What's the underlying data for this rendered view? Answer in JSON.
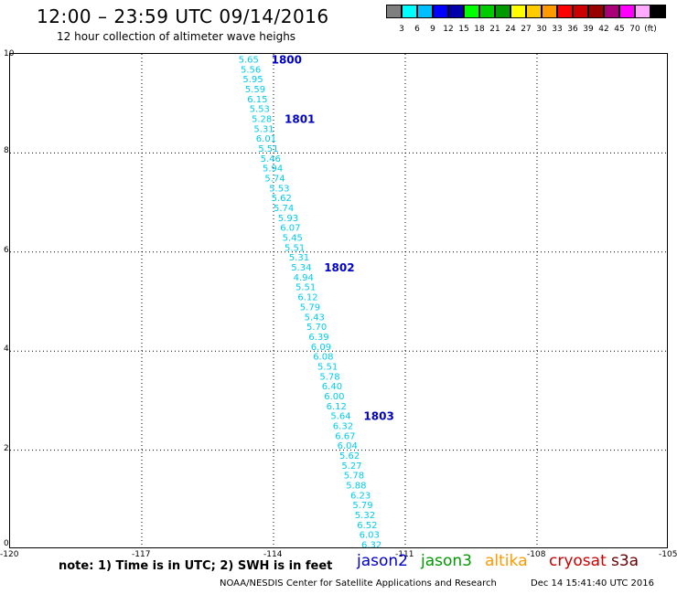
{
  "header": {
    "title": "12:00 – 23:59 UTC 09/14/2016",
    "subtitle": "12 hour collection of altimeter wave heighs"
  },
  "colorbar": {
    "unit": "(ft)",
    "bins": [
      {
        "color": "#7f7f7f",
        "label": ""
      },
      {
        "color": "#00ffff",
        "label": "3"
      },
      {
        "color": "#00bfff",
        "label": "6"
      },
      {
        "color": "#0000ff",
        "label": "9"
      },
      {
        "color": "#0000aa",
        "label": "12"
      },
      {
        "color": "#00ff00",
        "label": "15"
      },
      {
        "color": "#00cc00",
        "label": "18"
      },
      {
        "color": "#009900",
        "label": "21"
      },
      {
        "color": "#ffff00",
        "label": "24"
      },
      {
        "color": "#ffcc00",
        "label": "27"
      },
      {
        "color": "#ff9900",
        "label": "30"
      },
      {
        "color": "#ff0000",
        "label": "33"
      },
      {
        "color": "#cc0000",
        "label": "36"
      },
      {
        "color": "#990000",
        "label": "39"
      },
      {
        "color": "#aa0077",
        "label": "42"
      },
      {
        "color": "#ff00ff",
        "label": "45"
      },
      {
        "color": "#ffaaff",
        "label": "70"
      },
      {
        "color": "#000000",
        "label": ""
      }
    ]
  },
  "axes": {
    "x_ticks": [
      "-120",
      "-117",
      "-114",
      "-111",
      "-108",
      "-105"
    ],
    "y_ticks": [
      "0",
      "2",
      "4",
      "6",
      "8",
      "10"
    ],
    "xlim": [
      -120,
      -105
    ],
    "ylim": [
      0,
      10
    ]
  },
  "track": {
    "color": "#00ccee",
    "label_color": "#0000cc",
    "points": [
      {
        "lon": -114.8,
        "lat": 9.9,
        "v": "5.65"
      },
      {
        "lon": -114.75,
        "lat": 9.7,
        "v": "5.56"
      },
      {
        "lon": -114.7,
        "lat": 9.5,
        "v": "5.95"
      },
      {
        "lon": -114.65,
        "lat": 9.3,
        "v": "5.59"
      },
      {
        "lon": -114.6,
        "lat": 9.1,
        "v": "6.15"
      },
      {
        "lon": -114.55,
        "lat": 8.9,
        "v": "5.53"
      },
      {
        "lon": -114.5,
        "lat": 8.7,
        "v": "5.28"
      },
      {
        "lon": -114.45,
        "lat": 8.5,
        "v": "5.31"
      },
      {
        "lon": -114.4,
        "lat": 8.3,
        "v": "6.01"
      },
      {
        "lon": -114.35,
        "lat": 8.1,
        "v": "5.51"
      },
      {
        "lon": -114.3,
        "lat": 7.9,
        "v": "5.46"
      },
      {
        "lon": -114.25,
        "lat": 7.7,
        "v": "5.94"
      },
      {
        "lon": -114.2,
        "lat": 7.5,
        "v": "5.74"
      },
      {
        "lon": -114.1,
        "lat": 7.3,
        "v": "5.53"
      },
      {
        "lon": -114.05,
        "lat": 7.1,
        "v": "5.62"
      },
      {
        "lon": -114.0,
        "lat": 6.9,
        "v": "5.74"
      },
      {
        "lon": -113.9,
        "lat": 6.7,
        "v": "5.93"
      },
      {
        "lon": -113.85,
        "lat": 6.5,
        "v": "6.07"
      },
      {
        "lon": -113.8,
        "lat": 6.3,
        "v": "5.45"
      },
      {
        "lon": -113.75,
        "lat": 6.1,
        "v": "5.51"
      },
      {
        "lon": -113.65,
        "lat": 5.9,
        "v": "5.31"
      },
      {
        "lon": -113.6,
        "lat": 5.7,
        "v": "5.34"
      },
      {
        "lon": -113.55,
        "lat": 5.5,
        "v": "4.94"
      },
      {
        "lon": -113.5,
        "lat": 5.3,
        "v": "5.51"
      },
      {
        "lon": -113.45,
        "lat": 5.1,
        "v": "6.12"
      },
      {
        "lon": -113.4,
        "lat": 4.9,
        "v": "5.79"
      },
      {
        "lon": -113.3,
        "lat": 4.7,
        "v": "5.43"
      },
      {
        "lon": -113.25,
        "lat": 4.5,
        "v": "5.70"
      },
      {
        "lon": -113.2,
        "lat": 4.3,
        "v": "6.39"
      },
      {
        "lon": -113.15,
        "lat": 4.1,
        "v": "6.09"
      },
      {
        "lon": -113.1,
        "lat": 3.9,
        "v": "6.08"
      },
      {
        "lon": -113.0,
        "lat": 3.7,
        "v": "5.51"
      },
      {
        "lon": -112.95,
        "lat": 3.5,
        "v": "5.78"
      },
      {
        "lon": -112.9,
        "lat": 3.3,
        "v": "6.40"
      },
      {
        "lon": -112.85,
        "lat": 3.1,
        "v": "6.00"
      },
      {
        "lon": -112.8,
        "lat": 2.9,
        "v": "6.12"
      },
      {
        "lon": -112.7,
        "lat": 2.7,
        "v": "5.64"
      },
      {
        "lon": -112.65,
        "lat": 2.5,
        "v": "6.32"
      },
      {
        "lon": -112.6,
        "lat": 2.3,
        "v": "6.67"
      },
      {
        "lon": -112.55,
        "lat": 2.1,
        "v": "6.04"
      },
      {
        "lon": -112.5,
        "lat": 1.9,
        "v": "5.62"
      },
      {
        "lon": -112.45,
        "lat": 1.7,
        "v": "5.27"
      },
      {
        "lon": -112.4,
        "lat": 1.5,
        "v": "5.78"
      },
      {
        "lon": -112.35,
        "lat": 1.3,
        "v": "5.88"
      },
      {
        "lon": -112.25,
        "lat": 1.1,
        "v": "6.23"
      },
      {
        "lon": -112.2,
        "lat": 0.9,
        "v": "5.79"
      },
      {
        "lon": -112.15,
        "lat": 0.7,
        "v": "5.32"
      },
      {
        "lon": -112.1,
        "lat": 0.5,
        "v": "6.52"
      },
      {
        "lon": -112.05,
        "lat": 0.3,
        "v": "6.03"
      },
      {
        "lon": -112.0,
        "lat": 0.1,
        "v": "6.32"
      }
    ],
    "time_labels": [
      {
        "after": 0,
        "text": "1800"
      },
      {
        "after": 6,
        "text": "1801"
      },
      {
        "after": 21,
        "text": "1802"
      },
      {
        "after": 36,
        "text": "1803"
      }
    ]
  },
  "note": "note: 1) Time is in UTC; 2) SWH is in feet",
  "satellites": [
    {
      "name": "jason2",
      "color": "#0000cc"
    },
    {
      "name": "jason3",
      "color": "#009900"
    },
    {
      "name": "altika",
      "color": "#ff9900"
    },
    {
      "name": "cryosat",
      "color": "#cc0000"
    },
    {
      "name": "s3a",
      "color": "#660000"
    }
  ],
  "footer": {
    "credit": "NOAA/NESDIS Center for Satellite Applications and Research",
    "timestamp": "Dec 14 15:41:40 UTC 2016"
  }
}
